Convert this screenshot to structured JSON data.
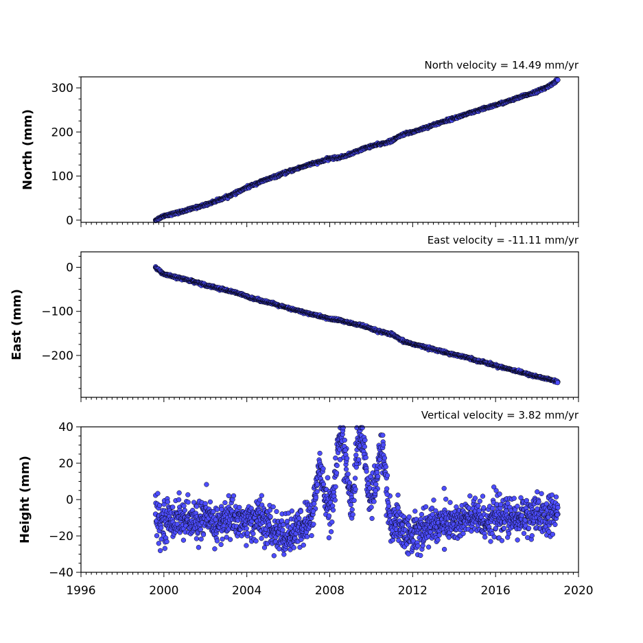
{
  "chart_data": [
    {
      "type": "scatter",
      "panel": "north",
      "ylabel": "North (mm)",
      "annotation": "North velocity = 14.49 mm/yr",
      "xlim": [
        1996,
        2020
      ],
      "ylim": [
        -5,
        325
      ],
      "xticks": [
        1996,
        2000,
        2004,
        2008,
        2012,
        2016,
        2020
      ],
      "yticks": [
        0,
        100,
        200,
        300
      ],
      "ytick_labels": [
        "0",
        "100",
        "200",
        "300"
      ],
      "show_xtick_labels": false,
      "color": "#4d4dff",
      "x": [
        1999.6,
        2000.0,
        2000.5,
        2001.0,
        2001.5,
        2002.0,
        2002.5,
        2003.0,
        2003.5,
        2004.0,
        2004.5,
        2005.0,
        2005.5,
        2006.0,
        2006.5,
        2007.0,
        2007.5,
        2008.0,
        2008.5,
        2009.0,
        2009.5,
        2010.0,
        2010.5,
        2011.0,
        2011.5,
        2012.0,
        2012.5,
        2013.0,
        2013.5,
        2014.0,
        2014.5,
        2015.0,
        2015.5,
        2016.0,
        2016.5,
        2017.0,
        2017.5,
        2018.0,
        2018.5,
        2019.0
      ],
      "y": [
        0,
        10,
        15,
        21,
        28,
        35,
        43,
        52,
        62,
        74,
        84,
        93,
        101,
        110,
        118,
        126,
        132,
        140,
        142,
        150,
        160,
        168,
        173,
        180,
        194,
        200,
        208,
        216,
        224,
        231,
        239,
        246,
        254,
        261,
        268,
        276,
        284,
        292,
        302,
        318
      ]
    },
    {
      "type": "scatter",
      "panel": "east",
      "ylabel": "East (mm)",
      "annotation": "East velocity = -11.11 mm/yr",
      "xlim": [
        1996,
        2020
      ],
      "ylim": [
        -295,
        35
      ],
      "xticks": [
        1996,
        2000,
        2004,
        2008,
        2012,
        2016,
        2020
      ],
      "yticks": [
        0,
        -100,
        -200
      ],
      "ytick_labels": [
        "0",
        "−100",
        "−200"
      ],
      "show_xtick_labels": false,
      "color": "#4d4dff",
      "x": [
        1999.6,
        2000.0,
        2000.5,
        2001.0,
        2001.5,
        2002.0,
        2002.5,
        2003.0,
        2003.5,
        2004.0,
        2004.5,
        2005.0,
        2005.5,
        2006.0,
        2006.5,
        2007.0,
        2007.5,
        2008.0,
        2008.5,
        2009.0,
        2009.5,
        2010.0,
        2010.5,
        2011.0,
        2011.5,
        2012.0,
        2012.5,
        2013.0,
        2013.5,
        2014.0,
        2014.5,
        2015.0,
        2015.5,
        2016.0,
        2016.5,
        2017.0,
        2017.5,
        2018.0,
        2018.5,
        2019.0
      ],
      "y": [
        0,
        -16,
        -22,
        -27,
        -33,
        -40,
        -46,
        -52,
        -58,
        -66,
        -73,
        -79,
        -86,
        -93,
        -99,
        -105,
        -111,
        -117,
        -120,
        -127,
        -131,
        -140,
        -147,
        -152,
        -167,
        -174,
        -180,
        -186,
        -192,
        -198,
        -203,
        -210,
        -216,
        -223,
        -229,
        -235,
        -242,
        -248,
        -253,
        -260
      ]
    },
    {
      "type": "scatter",
      "panel": "height",
      "ylabel": "Height (mm)",
      "annotation": "Vertical velocity = 3.82 mm/yr",
      "xlim": [
        1996,
        2020
      ],
      "ylim": [
        -40,
        40
      ],
      "xticks": [
        1996,
        2000,
        2004,
        2008,
        2012,
        2016,
        2020
      ],
      "xtick_labels": [
        "1996",
        "2000",
        "2004",
        "2008",
        "2012",
        "2016",
        "2020"
      ],
      "yticks": [
        -40,
        -20,
        0,
        20,
        40
      ],
      "ytick_labels": [
        "−40",
        "−20",
        "0",
        "20",
        "40"
      ],
      "show_xtick_labels": true,
      "color": "#4d4dff",
      "x": [
        1999.6,
        1999.8,
        2000.0,
        2000.3,
        2000.6,
        2001.0,
        2001.4,
        2001.8,
        2002.2,
        2002.6,
        2003.0,
        2003.4,
        2003.8,
        2004.2,
        2004.6,
        2005.0,
        2005.4,
        2005.8,
        2006.2,
        2006.6,
        2007.0,
        2007.3,
        2007.6,
        2007.9,
        2008.2,
        2008.5,
        2008.8,
        2009.1,
        2009.4,
        2009.7,
        2010.0,
        2010.3,
        2010.6,
        2010.9,
        2011.2,
        2011.5,
        2011.8,
        2012.1,
        2012.5,
        2013.0,
        2013.5,
        2014.0,
        2014.5,
        2015.0,
        2015.5,
        2016.0,
        2016.5,
        2017.0,
        2017.5,
        2018.0,
        2018.5,
        2019.0
      ],
      "y": [
        -8,
        -14,
        -10,
        -12,
        -9,
        -11,
        -13,
        -10,
        -12,
        -14,
        -11,
        -9,
        -13,
        -12,
        -10,
        -15,
        -18,
        -20,
        -19,
        -16,
        -12,
        -5,
        6,
        12,
        2,
        22,
        28,
        5,
        20,
        25,
        12,
        6,
        18,
        2,
        -12,
        -16,
        -20,
        -18,
        -16,
        -14,
        -12,
        -13,
        -11,
        -10,
        -12,
        -9,
        -10,
        -11,
        -8,
        -10,
        -9,
        -8
      ]
    }
  ]
}
